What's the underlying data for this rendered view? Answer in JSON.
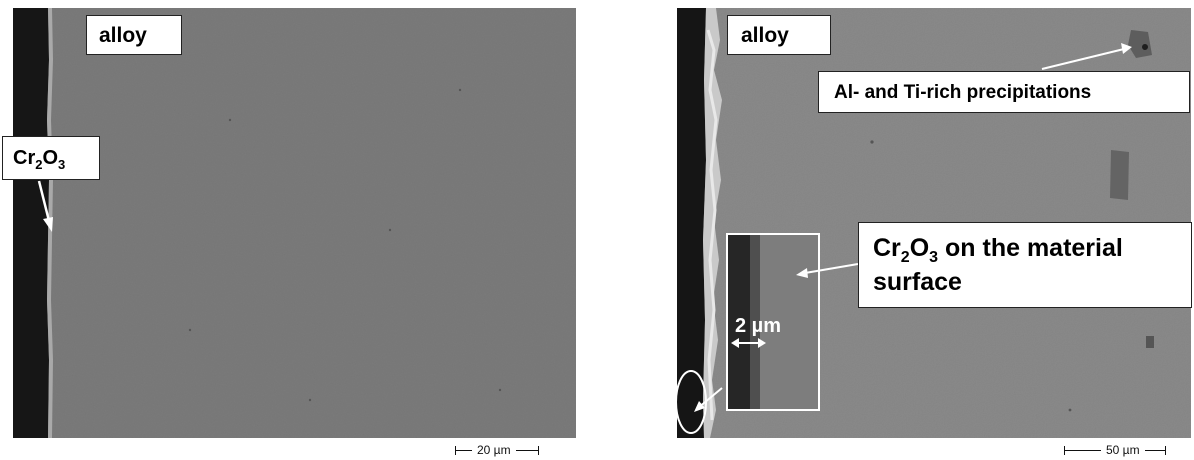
{
  "left_panel": {
    "alloy_label": "alloy",
    "oxide_label_main": "Cr",
    "oxide_label_sub1": "2",
    "oxide_label_mid": "O",
    "oxide_label_sub2": "3",
    "scale_bar_text": "20 µm"
  },
  "right_panel": {
    "alloy_label": "alloy",
    "precipitation_label": "Al- and Ti-rich precipitations",
    "oxide_label_main": "Cr",
    "oxide_label_sub1": "2",
    "oxide_label_mid": "O",
    "oxide_label_sub2": "3",
    "oxide_label_rest": " on the material",
    "oxide_label_line2": "surface",
    "inset_measure": "2 µm",
    "scale_bar_text": "50 µm"
  },
  "colors": {
    "alloy_gray": "#7b7b7b",
    "oxide_dark": "#1a1a1a",
    "label_background": "#ffffff",
    "arrow": "#ffffff"
  }
}
